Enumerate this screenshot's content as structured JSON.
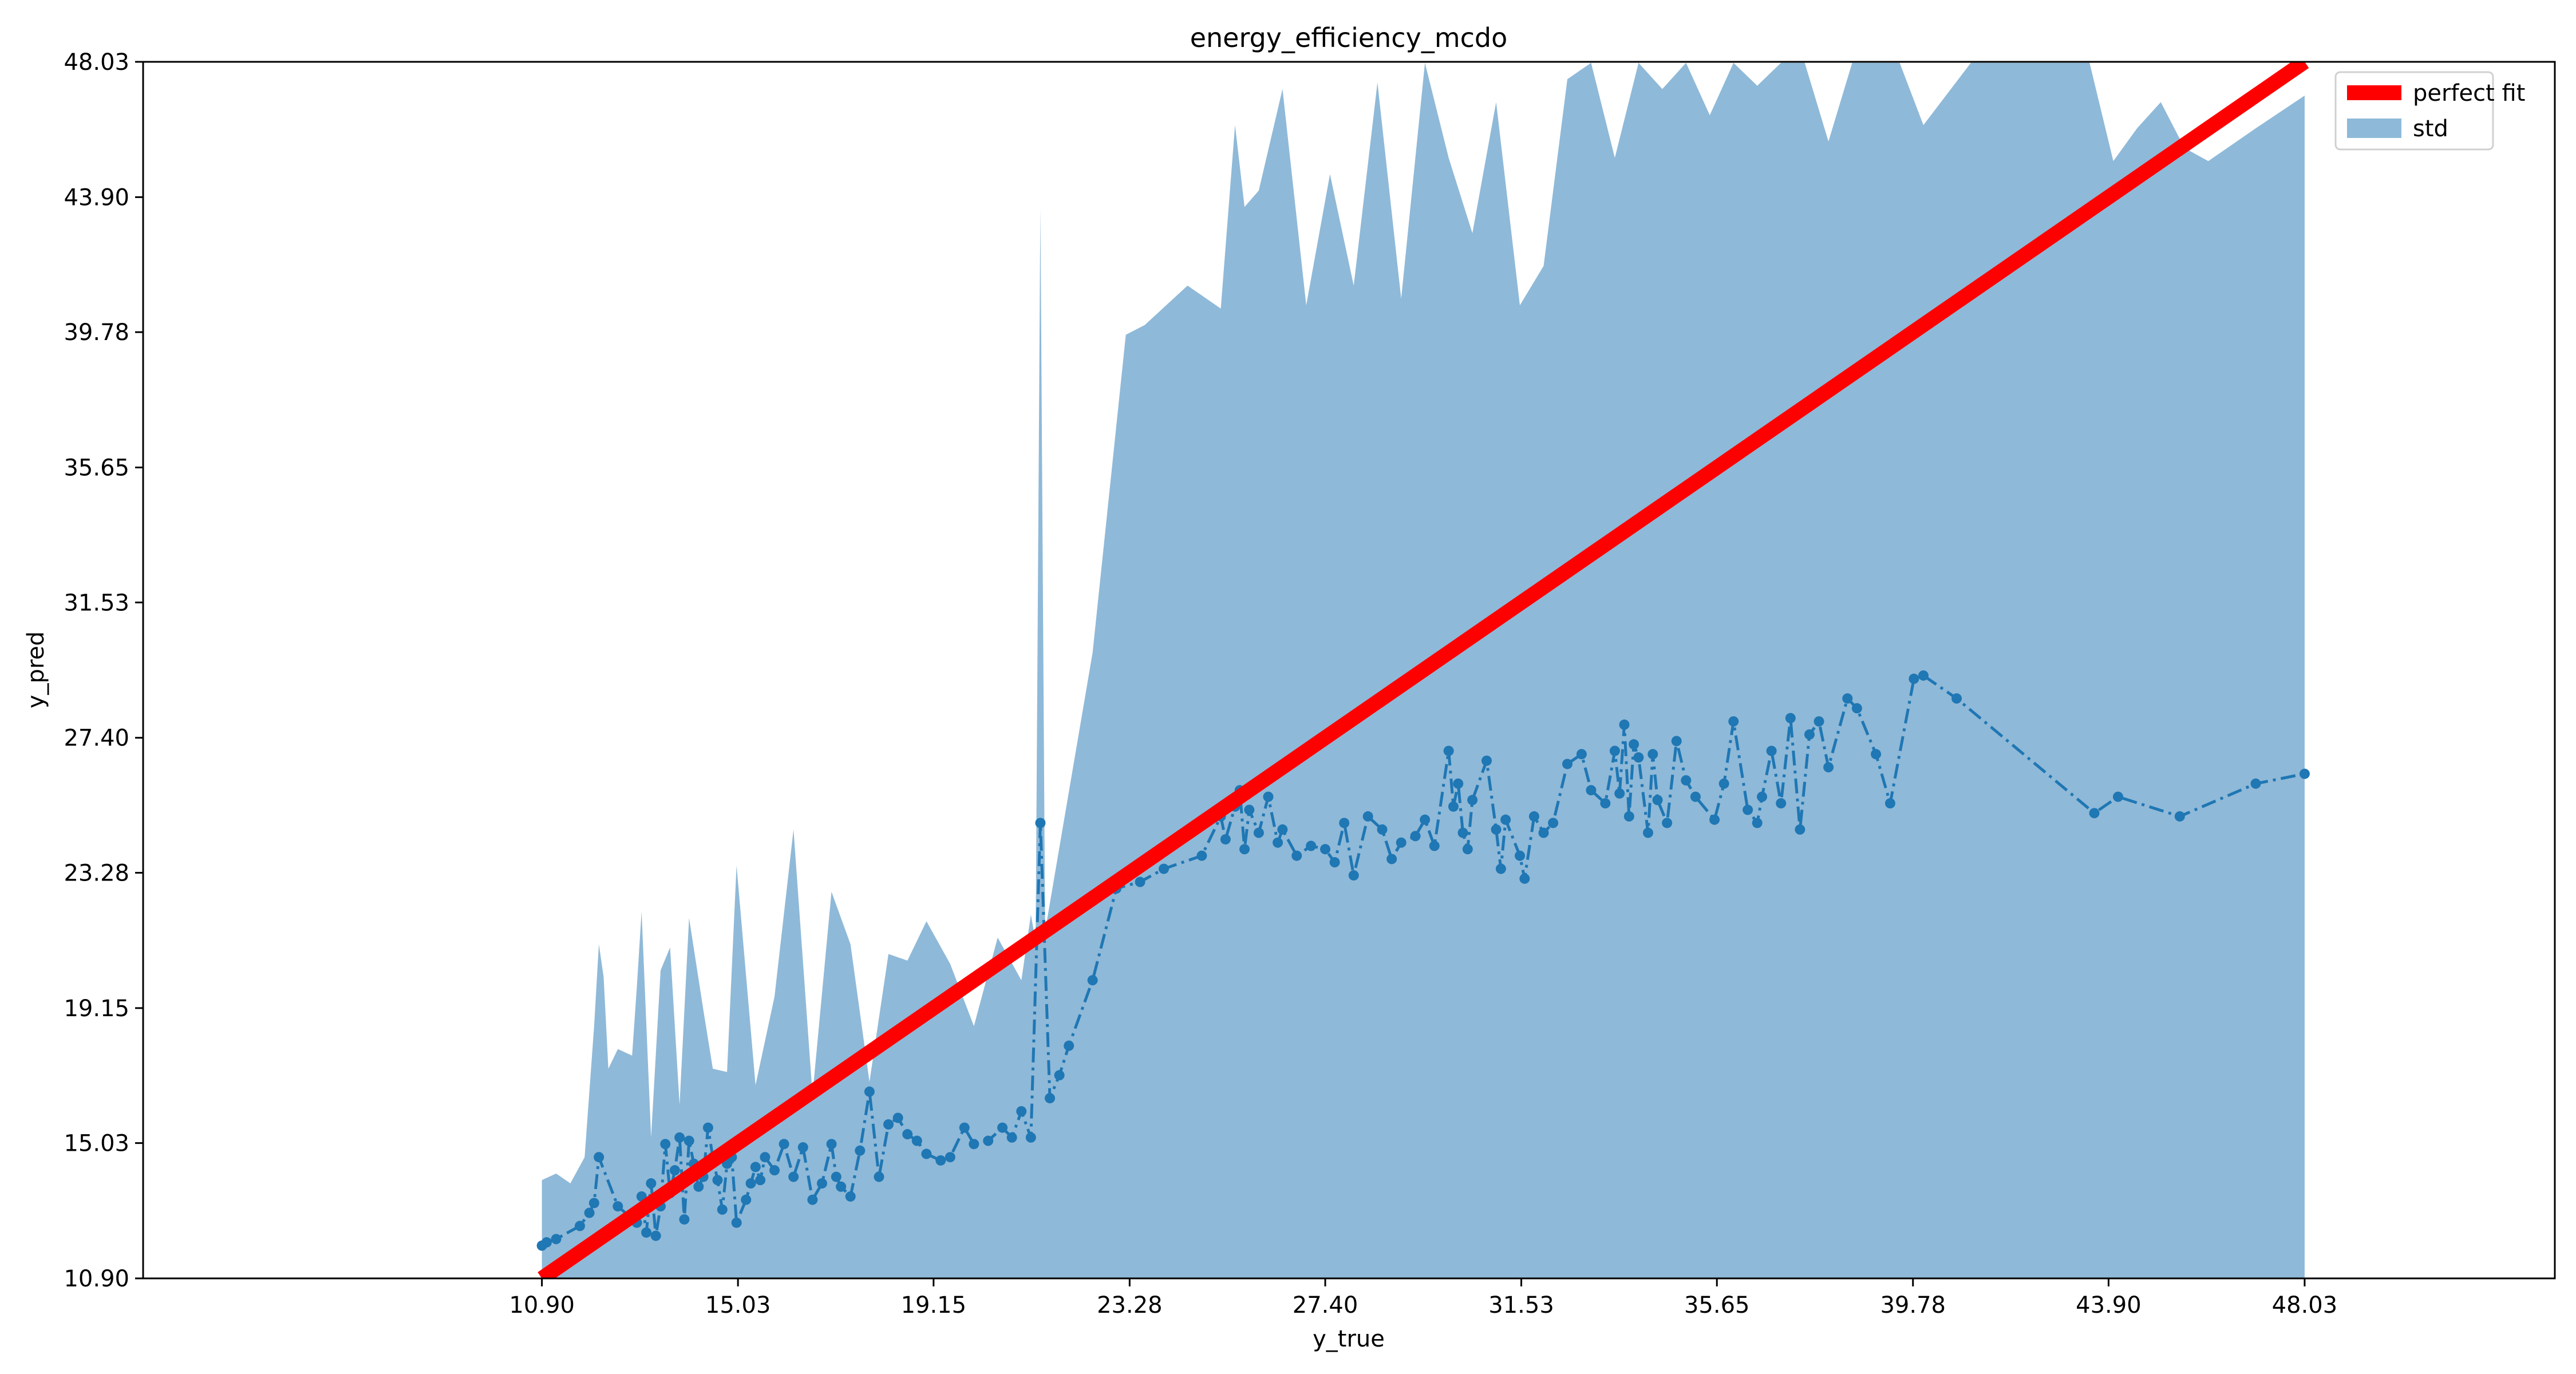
{
  "colors": {
    "std_fill": "#8fb9d8",
    "prediction": "#1f77b4",
    "perfect_fit": "#ff0000",
    "axes": "#000000",
    "legend_border": "#cccccc"
  },
  "chart_data": {
    "type": "line",
    "title": "energy_efficiency_mcdo",
    "xlabel": "y_true",
    "ylabel": "y_pred",
    "xlim": [
      2.5,
      53.3
    ],
    "ylim": [
      10.9,
      48.03
    ],
    "xticks": [
      10.9,
      15.03,
      19.15,
      23.28,
      27.4,
      31.53,
      35.65,
      39.78,
      43.9,
      48.03
    ],
    "xtick_labels": [
      "10.90",
      "15.03",
      "19.15",
      "23.28",
      "27.40",
      "31.53",
      "35.65",
      "39.78",
      "43.90",
      "48.03"
    ],
    "yticks": [
      10.9,
      15.03,
      19.15,
      23.28,
      27.4,
      31.53,
      35.65,
      39.78,
      43.9,
      48.03
    ],
    "ytick_labels": [
      "10.90",
      "15.03",
      "19.15",
      "23.28",
      "27.40",
      "31.53",
      "35.65",
      "39.78",
      "43.90",
      "48.03"
    ],
    "grid": false,
    "legend": {
      "placement": "top-right",
      "entries": [
        {
          "label": "perfect fit",
          "kind": "line"
        },
        {
          "label": "std",
          "kind": "patch"
        }
      ]
    },
    "perfect_fit": {
      "x": [
        10.9,
        48.03
      ],
      "y": [
        10.9,
        48.03
      ]
    },
    "prediction": {
      "style": "dash-dot with markers",
      "x": [
        10.9,
        11.0,
        11.2,
        11.7,
        11.9,
        12.0,
        12.1,
        12.5,
        12.9,
        13.0,
        13.1,
        13.2,
        13.3,
        13.4,
        13.5,
        13.6,
        13.7,
        13.8,
        13.9,
        14.0,
        14.1,
        14.2,
        14.3,
        14.4,
        14.5,
        14.6,
        14.7,
        14.8,
        14.9,
        15.0,
        15.2,
        15.3,
        15.4,
        15.5,
        15.6,
        15.8,
        16.0,
        16.2,
        16.4,
        16.6,
        16.8,
        17.0,
        17.1,
        17.2,
        17.4,
        17.6,
        17.8,
        18.0,
        18.2,
        18.4,
        18.6,
        18.8,
        19.0,
        19.3,
        19.5,
        19.8,
        20.0,
        20.3,
        20.6,
        20.8,
        21.0,
        21.2,
        21.4,
        21.6,
        21.8,
        22.0,
        22.5,
        23.0,
        23.5,
        24.0,
        24.8,
        25.2,
        25.3,
        25.5,
        25.6,
        25.7,
        25.8,
        26.0,
        26.2,
        26.4,
        26.5,
        26.8,
        27.1,
        27.4,
        27.6,
        27.8,
        28.0,
        28.3,
        28.6,
        28.8,
        29.0,
        29.3,
        29.5,
        29.7,
        30.0,
        30.1,
        30.2,
        30.3,
        30.4,
        30.5,
        30.8,
        31.0,
        31.1,
        31.2,
        31.5,
        31.6,
        31.8,
        32.0,
        32.2,
        32.5,
        32.8,
        33.0,
        33.3,
        33.5,
        33.6,
        33.7,
        33.8,
        33.9,
        34.0,
        34.2,
        34.3,
        34.4,
        34.6,
        34.8,
        35.0,
        35.2,
        35.6,
        35.8,
        36.0,
        36.3,
        36.5,
        36.6,
        36.8,
        37.0,
        37.2,
        37.4,
        37.6,
        37.8,
        38.0,
        38.4,
        38.6,
        39.0,
        39.3,
        39.8,
        40.0,
        40.7,
        43.6,
        44.1,
        45.4,
        47.0,
        48.03
      ],
      "y": [
        11.9,
        12.0,
        12.1,
        12.5,
        12.9,
        13.2,
        14.6,
        13.1,
        12.6,
        13.4,
        12.3,
        13.8,
        12.2,
        13.1,
        15.0,
        13.5,
        14.2,
        15.2,
        12.7,
        15.1,
        14.4,
        13.7,
        14.0,
        15.5,
        14.6,
        13.9,
        13.0,
        14.4,
        14.6,
        12.6,
        13.3,
        13.8,
        14.3,
        13.9,
        14.6,
        14.2,
        15.0,
        14.0,
        14.9,
        13.3,
        13.8,
        15.0,
        14.0,
        13.7,
        13.4,
        14.8,
        16.6,
        14.0,
        15.6,
        15.8,
        15.3,
        15.1,
        14.7,
        14.5,
        14.6,
        15.5,
        15.0,
        15.1,
        15.5,
        15.2,
        16.0,
        15.2,
        24.8,
        16.4,
        17.1,
        18.0,
        20.0,
        22.8,
        23.0,
        23.4,
        23.8,
        25.0,
        24.3,
        25.3,
        25.8,
        24.0,
        25.2,
        24.5,
        25.6,
        24.2,
        24.6,
        23.8,
        24.1,
        24.0,
        23.6,
        24.8,
        23.2,
        25.0,
        24.6,
        23.7,
        24.2,
        24.4,
        24.9,
        24.1,
        27.0,
        25.3,
        26.0,
        24.5,
        24.0,
        25.5,
        26.7,
        24.6,
        23.4,
        24.9,
        23.8,
        23.1,
        25.0,
        24.5,
        24.8,
        26.6,
        26.9,
        25.8,
        25.4,
        27.0,
        25.7,
        27.8,
        25.0,
        27.2,
        26.8,
        24.5,
        26.9,
        25.5,
        24.8,
        27.3,
        26.1,
        25.6,
        24.9,
        26.0,
        27.9,
        25.2,
        24.8,
        25.6,
        27.0,
        25.4,
        28.0,
        24.6,
        27.5,
        27.9,
        26.5,
        28.6,
        28.3,
        26.9,
        25.4,
        29.2,
        29.3,
        28.6,
        25.1,
        25.6,
        25.0,
        26.0,
        26.3
      ]
    },
    "std_band": {
      "x": [
        10.9,
        11.2,
        11.5,
        11.8,
        12.0,
        12.1,
        12.2,
        12.3,
        12.5,
        12.8,
        12.9,
        13.0,
        13.2,
        13.4,
        13.6,
        13.8,
        14.0,
        14.3,
        14.5,
        14.8,
        15.0,
        15.4,
        15.8,
        16.2,
        16.6,
        17.0,
        17.4,
        17.8,
        18.2,
        18.6,
        19.0,
        19.5,
        20.0,
        20.5,
        21.0,
        21.2,
        21.3,
        21.4,
        21.5,
        22.5,
        23.2,
        23.6,
        24.5,
        25.2,
        25.5,
        25.7,
        26.0,
        26.5,
        27.0,
        27.5,
        28.0,
        28.5,
        29.0,
        29.5,
        30.0,
        30.5,
        31.0,
        31.5,
        32.0,
        32.5,
        33.0,
        33.5,
        34.0,
        34.5,
        35.0,
        35.5,
        36.0,
        36.5,
        37.0,
        37.5,
        38.0,
        38.5,
        39.0,
        39.5,
        40.0,
        41.0,
        42.0,
        42.5,
        43.5,
        44.0,
        44.5,
        45.0,
        45.5,
        46.0,
        47.0,
        48.03
      ],
      "upper": [
        13.9,
        14.1,
        13.8,
        14.6,
        18.6,
        21.1,
        20.1,
        17.3,
        17.9,
        17.7,
        19.8,
        22.1,
        15.2,
        20.3,
        21.0,
        16.2,
        21.9,
        19.1,
        17.3,
        17.2,
        23.5,
        16.8,
        19.5,
        24.6,
        16.5,
        22.7,
        21.1,
        16.9,
        20.8,
        20.6,
        21.8,
        20.5,
        18.6,
        21.3,
        20.0,
        22.0,
        21.2,
        43.6,
        21.5,
        30.0,
        39.7,
        40.0,
        41.2,
        40.5,
        46.1,
        43.6,
        44.1,
        47.2,
        40.6,
        44.6,
        41.2,
        47.4,
        40.8,
        48.0,
        45.1,
        42.8,
        46.8,
        40.6,
        41.8,
        47.5,
        48.0,
        45.1,
        48.0,
        47.2,
        48.0,
        46.4,
        48.0,
        47.3,
        48.0,
        48.0,
        45.6,
        48.0,
        48.0,
        48.0,
        46.1,
        48.0,
        48.0,
        48.0,
        48.0,
        45.0,
        46.0,
        46.8,
        45.4,
        45.0,
        46.0,
        47.0
      ],
      "lower": [
        10.9,
        10.9,
        10.9,
        10.9,
        10.9,
        10.9,
        10.9,
        10.9,
        10.9,
        10.9,
        10.9,
        10.9,
        10.9,
        10.9,
        10.9,
        10.9,
        10.9,
        10.9,
        10.9,
        10.9,
        10.9,
        10.9,
        10.9,
        10.9,
        10.9,
        10.9,
        10.9,
        10.9,
        10.9,
        10.9,
        10.9,
        10.9,
        10.9,
        10.9,
        10.9,
        10.9,
        10.9,
        10.9,
        10.9,
        10.9,
        10.9,
        10.9,
        10.9,
        10.9,
        10.9,
        10.9,
        10.9,
        10.9,
        10.9,
        10.9,
        10.9,
        10.9,
        10.9,
        10.9,
        10.9,
        10.9,
        10.9,
        10.9,
        10.9,
        10.9,
        10.9,
        10.9,
        10.9,
        10.9,
        10.9,
        10.9,
        10.9,
        10.9,
        10.9,
        10.9,
        10.9,
        10.9,
        10.9,
        10.9,
        10.9,
        10.9,
        10.9,
        10.9,
        10.9,
        10.9,
        10.9,
        10.9,
        10.9,
        10.9,
        10.9,
        10.9
      ]
    }
  }
}
